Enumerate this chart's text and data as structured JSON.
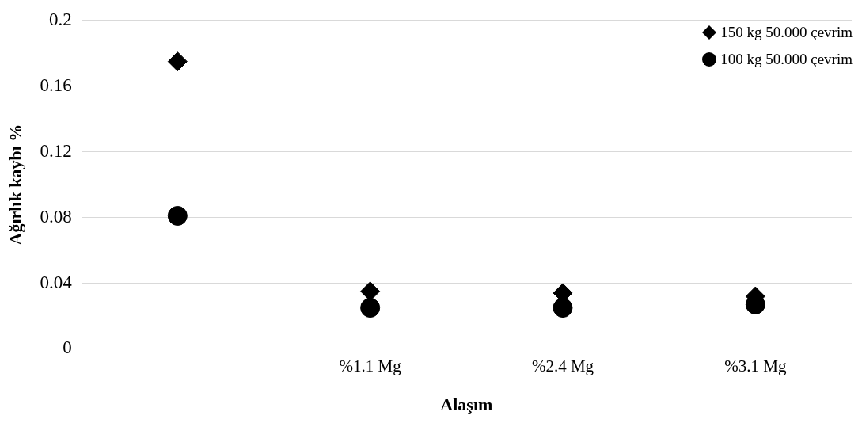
{
  "chart_data": {
    "type": "scatter",
    "xlabel": "Alaşım",
    "ylabel": "Ağırlık kaybı %",
    "categories": [
      null,
      "%1.1 Mg",
      "%2.4 Mg",
      "%3.1 Mg"
    ],
    "series": [
      {
        "name": "150 kg 50.000 çevrim",
        "color": "#000000",
        "marker": "diamond",
        "values": [
          0.175,
          0.035,
          0.034,
          0.032
        ]
      },
      {
        "name": "100 kg 50.000 çevrim",
        "color": "#000000",
        "marker": "circle",
        "values": [
          0.081,
          0.025,
          0.025,
          0.027
        ]
      }
    ],
    "ylim": [
      0,
      0.2
    ],
    "yticks": [
      0,
      0.04,
      0.08,
      0.12,
      0.16,
      0.2
    ],
    "grid": "y",
    "legend": "top right"
  }
}
